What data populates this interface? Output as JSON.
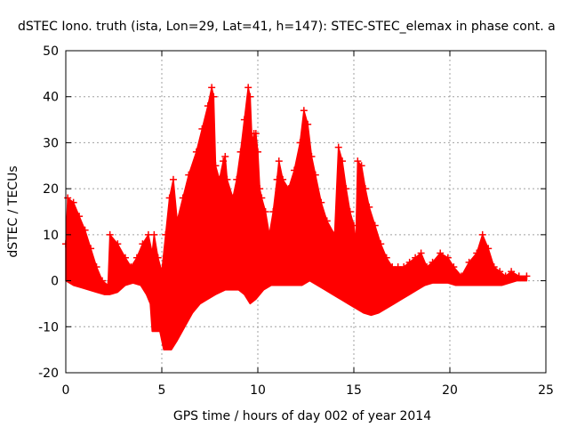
{
  "chart_data": {
    "type": "area",
    "title": "dSTEC Iono. truth (ista, Lon=29, Lat=41, h=147): STEC-STEC_elemax in phase cont. a",
    "xlabel": "GPS time / hours of day 002 of year 2014",
    "ylabel": "dSTEC  / TECUs",
    "xlim": [
      0,
      25
    ],
    "ylim": [
      -20,
      50
    ],
    "xticks": [
      0,
      5,
      10,
      15,
      20,
      25
    ],
    "yticks": [
      -20,
      -10,
      0,
      10,
      20,
      30,
      40,
      50
    ],
    "xtick_labels": [
      "0",
      "5",
      "10",
      "15",
      "20",
      "25"
    ],
    "ytick_labels": [
      "-20",
      "-10",
      "0",
      "10",
      "20",
      "30",
      "40",
      "50"
    ],
    "grid": true,
    "color": "#ff0000",
    "series": [
      {
        "upper": [
          [
            0,
            8
          ],
          [
            0.1,
            18
          ],
          [
            0.4,
            17
          ],
          [
            0.7,
            14
          ],
          [
            1.0,
            11
          ],
          [
            1.3,
            7
          ],
          [
            1.6,
            3
          ],
          [
            1.9,
            0
          ],
          [
            2.2,
            -1
          ],
          [
            2.3,
            10
          ],
          [
            2.7,
            8
          ],
          [
            3.1,
            5
          ],
          [
            3.4,
            3
          ],
          [
            3.7,
            5
          ],
          [
            4.0,
            8
          ],
          [
            4.3,
            10
          ],
          [
            4.5,
            6
          ],
          [
            4.6,
            10
          ],
          [
            4.8,
            5
          ],
          [
            5.0,
            2
          ],
          [
            5.2,
            10
          ],
          [
            5.4,
            18
          ],
          [
            5.6,
            22
          ],
          [
            5.8,
            13
          ],
          [
            6.1,
            18
          ],
          [
            6.4,
            23
          ],
          [
            6.8,
            28
          ],
          [
            7.1,
            33
          ],
          [
            7.4,
            38
          ],
          [
            7.6,
            42
          ],
          [
            7.7,
            40
          ],
          [
            7.8,
            25
          ],
          [
            8.0,
            22
          ],
          [
            8.2,
            26
          ],
          [
            8.3,
            27
          ],
          [
            8.4,
            22
          ],
          [
            8.7,
            18
          ],
          [
            8.9,
            22
          ],
          [
            9.1,
            28
          ],
          [
            9.3,
            35
          ],
          [
            9.5,
            42
          ],
          [
            9.6,
            40
          ],
          [
            9.7,
            30
          ],
          [
            9.8,
            32
          ],
          [
            9.9,
            32
          ],
          [
            10.0,
            28
          ],
          [
            10.1,
            20
          ],
          [
            10.2,
            18
          ],
          [
            10.4,
            15
          ],
          [
            10.6,
            10
          ],
          [
            10.8,
            15
          ],
          [
            11.0,
            22
          ],
          [
            11.1,
            26
          ],
          [
            11.3,
            22
          ],
          [
            11.6,
            20
          ],
          [
            11.9,
            24
          ],
          [
            12.2,
            30
          ],
          [
            12.4,
            37
          ],
          [
            12.6,
            34
          ],
          [
            12.8,
            27
          ],
          [
            13.0,
            23
          ],
          [
            13.3,
            17
          ],
          [
            13.6,
            13
          ],
          [
            14.0,
            10
          ],
          [
            14.2,
            29
          ],
          [
            14.4,
            26
          ],
          [
            14.6,
            20
          ],
          [
            14.8,
            15
          ],
          [
            15.0,
            12
          ],
          [
            15.1,
            8
          ],
          [
            15.2,
            26
          ],
          [
            15.4,
            25
          ],
          [
            15.6,
            20
          ],
          [
            15.8,
            16
          ],
          [
            16.1,
            12
          ],
          [
            16.4,
            8
          ],
          [
            16.7,
            5
          ],
          [
            17.0,
            3
          ],
          [
            17.3,
            3
          ],
          [
            17.6,
            3
          ],
          [
            17.9,
            4
          ],
          [
            18.2,
            5
          ],
          [
            18.5,
            6
          ],
          [
            18.8,
            3
          ],
          [
            19.1,
            4
          ],
          [
            19.5,
            6
          ],
          [
            19.9,
            5
          ],
          [
            20.2,
            3
          ],
          [
            20.6,
            1
          ],
          [
            21.0,
            4
          ],
          [
            21.4,
            6
          ],
          [
            21.7,
            10
          ],
          [
            22.0,
            7
          ],
          [
            22.3,
            3
          ],
          [
            22.6,
            2
          ],
          [
            22.9,
            1
          ],
          [
            23.2,
            2
          ],
          [
            23.6,
            1
          ],
          [
            24.0,
            1
          ]
        ],
        "lower": [
          [
            0,
            0
          ],
          [
            0.4,
            -1
          ],
          [
            0.8,
            -1.5
          ],
          [
            1.2,
            -2
          ],
          [
            1.6,
            -2.5
          ],
          [
            2.0,
            -3
          ],
          [
            2.3,
            -3
          ],
          [
            2.7,
            -2.5
          ],
          [
            3.1,
            -1
          ],
          [
            3.5,
            -0.5
          ],
          [
            3.9,
            -1
          ],
          [
            4.2,
            -3
          ],
          [
            4.4,
            -5
          ],
          [
            4.5,
            -11
          ],
          [
            4.9,
            -11
          ],
          [
            5.1,
            -15
          ],
          [
            5.5,
            -15
          ],
          [
            5.8,
            -13
          ],
          [
            6.2,
            -10
          ],
          [
            6.6,
            -7
          ],
          [
            7.0,
            -5
          ],
          [
            7.4,
            -4
          ],
          [
            7.8,
            -3
          ],
          [
            8.3,
            -2
          ],
          [
            8.7,
            -2
          ],
          [
            9.0,
            -2
          ],
          [
            9.3,
            -3
          ],
          [
            9.6,
            -5
          ],
          [
            9.9,
            -4
          ],
          [
            10.3,
            -2
          ],
          [
            10.7,
            -1
          ],
          [
            11.1,
            -1
          ],
          [
            11.5,
            -1
          ],
          [
            11.9,
            -1
          ],
          [
            12.3,
            -1
          ],
          [
            12.7,
            0
          ],
          [
            13.1,
            -1
          ],
          [
            13.5,
            -2
          ],
          [
            13.9,
            -3
          ],
          [
            14.3,
            -4
          ],
          [
            14.7,
            -5
          ],
          [
            15.1,
            -6
          ],
          [
            15.5,
            -7
          ],
          [
            15.9,
            -7.5
          ],
          [
            16.3,
            -7
          ],
          [
            16.7,
            -6
          ],
          [
            17.1,
            -5
          ],
          [
            17.5,
            -4
          ],
          [
            17.9,
            -3
          ],
          [
            18.3,
            -2
          ],
          [
            18.7,
            -1
          ],
          [
            19.1,
            -0.5
          ],
          [
            19.5,
            -0.5
          ],
          [
            19.9,
            -0.5
          ],
          [
            20.3,
            -1
          ],
          [
            20.7,
            -1
          ],
          [
            21.1,
            -1
          ],
          [
            21.5,
            -1
          ],
          [
            21.9,
            -1
          ],
          [
            22.3,
            -1
          ],
          [
            22.7,
            -1
          ],
          [
            23.1,
            -0.5
          ],
          [
            23.5,
            0
          ],
          [
            24.0,
            0
          ]
        ]
      }
    ]
  }
}
